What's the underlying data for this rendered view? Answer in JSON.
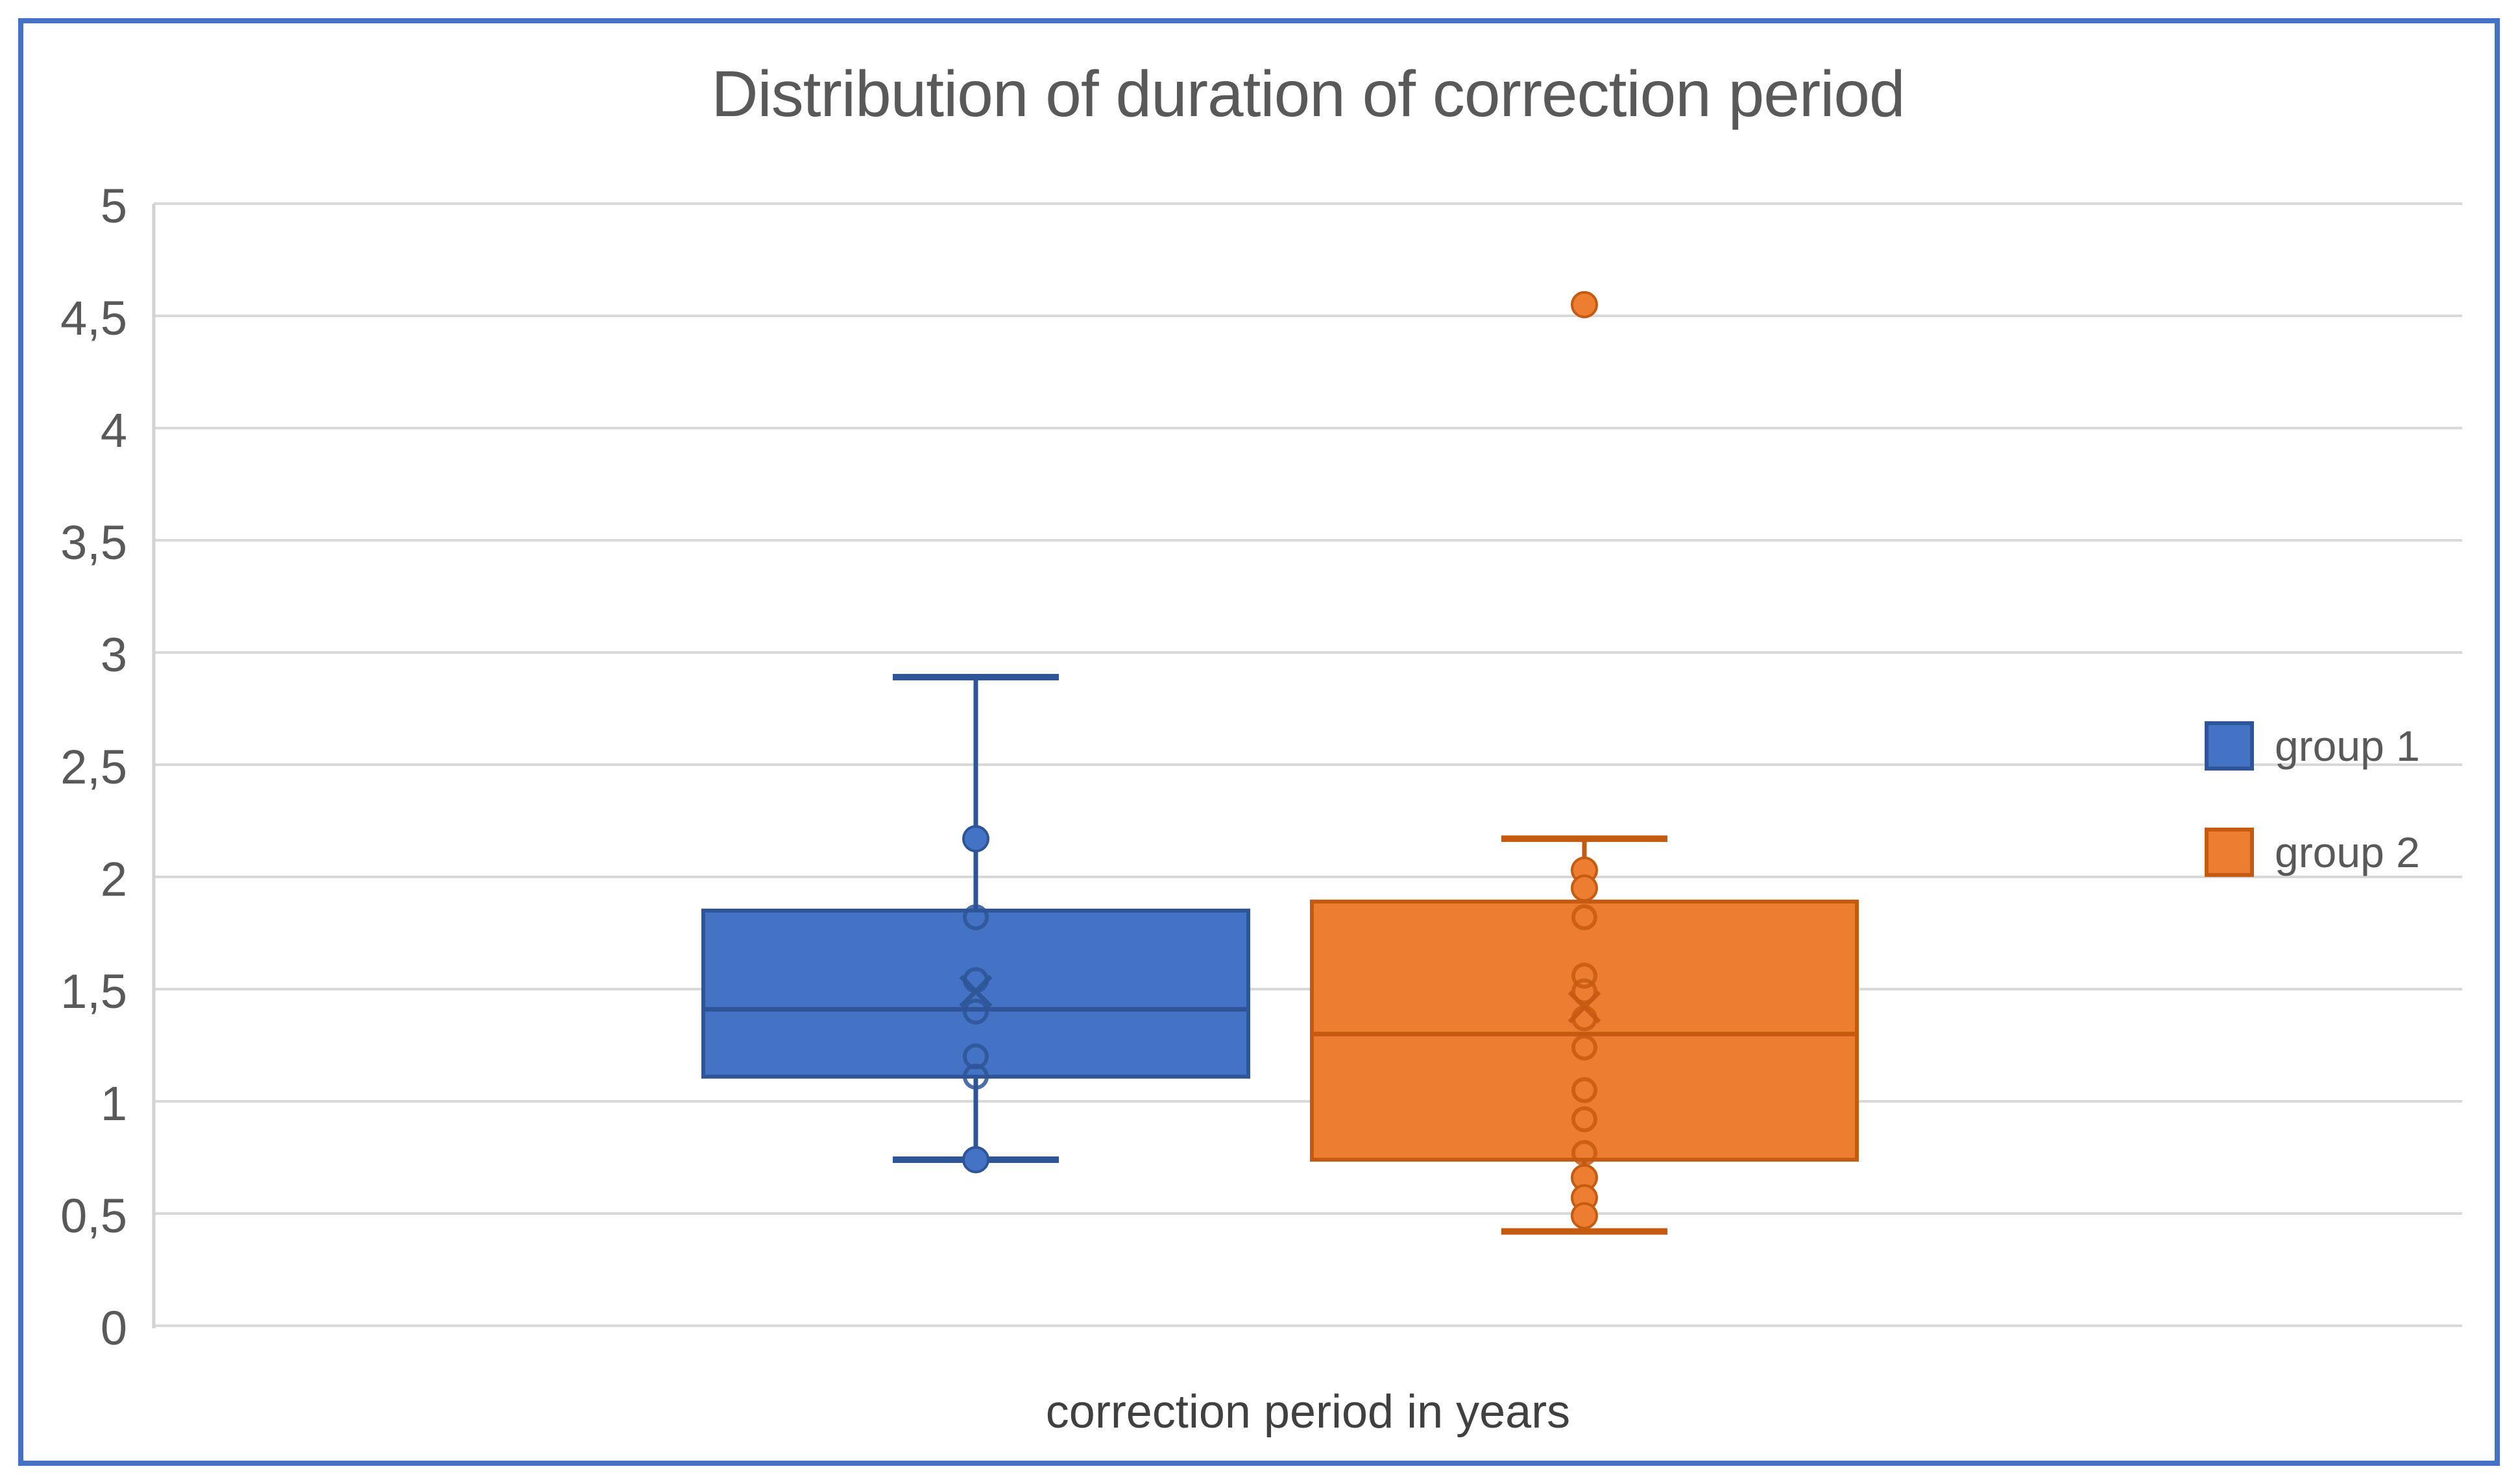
{
  "page": {
    "frame_color": "#4472C4",
    "background": "#ffffff"
  },
  "chart_data": {
    "type": "box",
    "title": "Distribution of duration of correction period",
    "xlabel": "correction period in years",
    "title_color": "#595959",
    "text_color": "#595959",
    "gridline_color": "#D9D9D9",
    "axis_line_color": "#D2D2D2",
    "grid": true,
    "decimal_separator": ",",
    "y_axis": {
      "min": 0,
      "max": 5,
      "step": 0.5,
      "tick_labels": [
        "0",
        "0,5",
        "1",
        "1,5",
        "2",
        "2,5",
        "3",
        "3,5",
        "4",
        "4,5",
        "5"
      ]
    },
    "legend": {
      "position": "right-overlay"
    },
    "series": [
      {
        "name": "group 1",
        "color": "#4472C4",
        "border_color": "#2E5597",
        "box": {
          "min": 0.74,
          "q1": 1.11,
          "median": 1.41,
          "q3": 1.85,
          "max": 2.89,
          "mean": 1.49
        },
        "points_filled": [
          2.17,
          0.74
        ],
        "points_open": [
          1.82,
          1.54,
          1.4,
          1.2,
          1.11
        ],
        "outliers": []
      },
      {
        "name": "group 2",
        "color": "#ED7D31",
        "border_color": "#C55A11",
        "box": {
          "min": 0.42,
          "q1": 0.74,
          "median": 1.3,
          "q3": 1.89,
          "max": 2.17,
          "mean": 1.42
        },
        "points_filled": [
          2.03,
          1.95,
          0.66,
          0.57,
          0.49
        ],
        "points_open": [
          1.82,
          1.56,
          1.49,
          1.37,
          1.24,
          1.05,
          0.92,
          0.77
        ],
        "outliers": [
          4.55
        ]
      }
    ]
  }
}
